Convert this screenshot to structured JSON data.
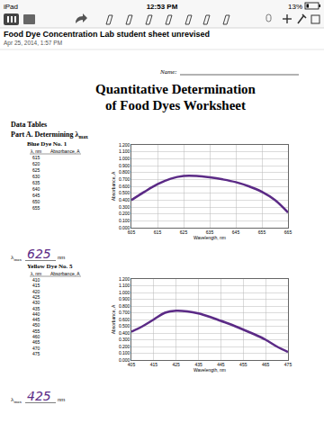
{
  "app": {
    "device": "iPad",
    "time": "12:53 PM",
    "battery": "13%",
    "note_title": "Food Dye Concentration Lab student sheet unrevised",
    "note_date": "Apr 25, 2014, 1:57 PM"
  },
  "document": {
    "name_label": "Name:",
    "title": [
      "Quantitative Determination",
      "of Food Dyes Worksheet"
    ],
    "section": "Data Tables",
    "part": {
      "text": "Part A. Determining λ",
      "sub": "max"
    },
    "dyes": [
      {
        "name": "Blue Dye No. 1",
        "table_header": [
          "λ, nm",
          "Absorbance, A"
        ],
        "wavelengths": [
          615,
          620,
          625,
          630,
          635,
          640,
          645,
          650,
          655
        ],
        "lambda_max": {
          "symbol": "λ",
          "sub": "max",
          "value": 625,
          "unit": "nm"
        }
      },
      {
        "name": "Yellow Dye No. 5",
        "table_header": [
          "λ, nm",
          "Absorbance, A"
        ],
        "wavelengths": [
          410,
          415,
          420,
          425,
          430,
          435,
          440,
          445,
          450,
          455,
          460,
          465,
          470,
          475
        ],
        "lambda_max": {
          "symbol": "λ",
          "sub": "max",
          "value": 425,
          "unit": "nm"
        }
      }
    ]
  },
  "chart_data": [
    {
      "type": "line",
      "x": [
        605,
        610,
        615,
        620,
        625,
        630,
        635,
        640,
        645,
        650,
        655,
        660,
        665
      ],
      "values": [
        0.4,
        0.52,
        0.63,
        0.71,
        0.75,
        0.75,
        0.73,
        0.7,
        0.66,
        0.6,
        0.52,
        0.4,
        0.22
      ],
      "color": "#5b2a86",
      "xlabel": "Wavelength, nm",
      "ylabel": "Absorbance, A",
      "xlim": [
        605,
        665
      ],
      "xticks": [
        605,
        615,
        625,
        635,
        645,
        655,
        665
      ],
      "ylim": [
        0,
        1.2
      ],
      "yticks": [
        {
          "value": 0,
          "label": "0.000"
        },
        {
          "value": 0.1,
          "label": "0.100"
        },
        {
          "value": 0.2,
          "label": "0.200"
        },
        {
          "value": 0.3,
          "label": "0.300"
        },
        {
          "value": 0.4,
          "label": "0.400"
        },
        {
          "value": 0.5,
          "label": "0.500"
        },
        {
          "value": 0.6,
          "label": "0.600"
        },
        {
          "value": 0.7,
          "label": "0.700"
        },
        {
          "value": 0.8,
          "label": "0.800"
        },
        {
          "value": 0.9,
          "label": "0.900"
        },
        {
          "value": 1.0,
          "label": "1.000"
        },
        {
          "value": 1.1,
          "label": "1.100"
        },
        {
          "value": 1.2,
          "label": "1.200"
        }
      ],
      "grid": true
    },
    {
      "type": "line",
      "x": [
        405,
        410,
        415,
        420,
        425,
        430,
        435,
        440,
        445,
        450,
        455,
        460,
        465,
        470,
        475
      ],
      "values": [
        0.42,
        0.5,
        0.6,
        0.7,
        0.73,
        0.72,
        0.69,
        0.64,
        0.58,
        0.52,
        0.45,
        0.38,
        0.3,
        0.2,
        0.12
      ],
      "color": "#5b2a86",
      "xlabel": "Wavelength, nm",
      "ylabel": "Absorbance, A",
      "xlim": [
        405,
        475
      ],
      "xticks": [
        405,
        415,
        425,
        435,
        445,
        455,
        465,
        475
      ],
      "ylim": [
        0,
        1.2
      ],
      "yticks": [
        {
          "value": 0,
          "label": "0.000"
        },
        {
          "value": 0.1,
          "label": "0.100"
        },
        {
          "value": 0.2,
          "label": "0.200"
        },
        {
          "value": 0.3,
          "label": "0.300"
        },
        {
          "value": 0.4,
          "label": "0.400"
        },
        {
          "value": 0.5,
          "label": "0.500"
        },
        {
          "value": 0.6,
          "label": "0.600"
        },
        {
          "value": 0.7,
          "label": "0.700"
        },
        {
          "value": 0.8,
          "label": "0.800"
        },
        {
          "value": 0.9,
          "label": "0.900"
        },
        {
          "value": 1.0,
          "label": "1.000"
        },
        {
          "value": 1.1,
          "label": "1.100"
        },
        {
          "value": 1.2,
          "label": "1.200"
        }
      ],
      "grid": true
    }
  ]
}
